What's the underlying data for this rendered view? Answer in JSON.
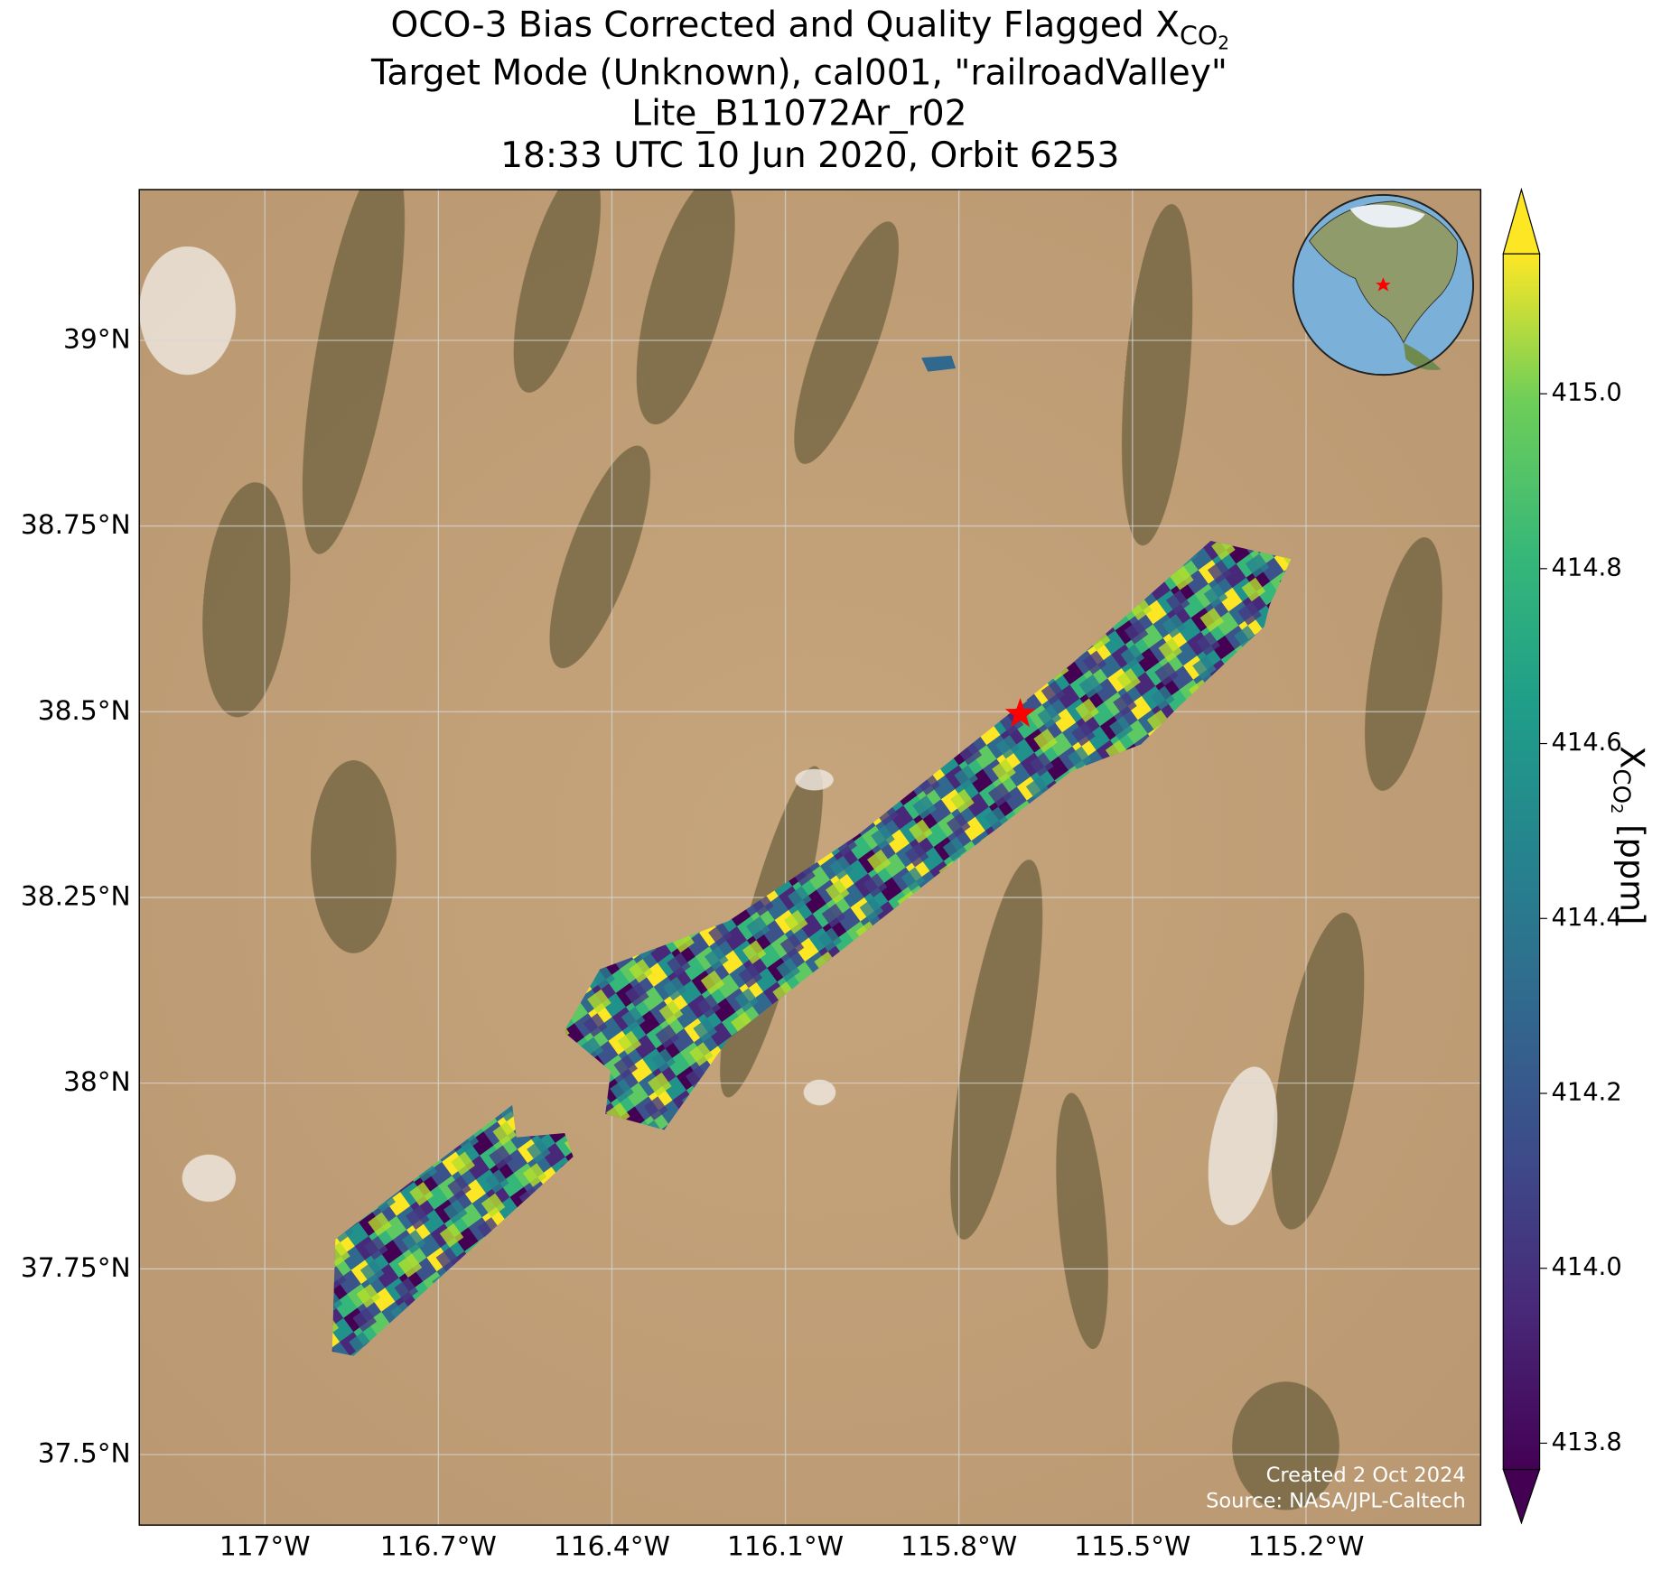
{
  "title": {
    "line1": "OCO-3 Bias Corrected and Quality Flagged X",
    "line1_sub": "CO",
    "line1_subsub": "2",
    "line2": "Target Mode (Unknown), cal001, \"railroadValley\"",
    "line3": "Lite_B11072Ar_r02",
    "line4": "18:33 UTC 10 Jun 2020, Orbit 6253"
  },
  "map": {
    "xlim": [
      -117.217,
      -114.898
    ],
    "ylim": [
      37.405,
      39.203
    ],
    "xticks": [
      {
        "value": -117,
        "label": "117°W"
      },
      {
        "value": -116.7,
        "label": "116.7°W"
      },
      {
        "value": -116.4,
        "label": "116.4°W"
      },
      {
        "value": -116.1,
        "label": "116.1°W"
      },
      {
        "value": -115.8,
        "label": "115.8°W"
      },
      {
        "value": -115.5,
        "label": "115.5°W"
      },
      {
        "value": -115.2,
        "label": "115.2°W"
      }
    ],
    "yticks": [
      {
        "value": 37.5,
        "label": "37.5°N"
      },
      {
        "value": 37.75,
        "label": "37.75°N"
      },
      {
        "value": 38,
        "label": "38°N"
      },
      {
        "value": 38.25,
        "label": "38.25°N"
      },
      {
        "value": 38.5,
        "label": "38.5°N"
      },
      {
        "value": 38.75,
        "label": "38.75°N"
      },
      {
        "value": 39,
        "label": "39°N"
      }
    ],
    "grid": true,
    "target": {
      "lon": -115.694,
      "lat": 38.497,
      "color": "#ff0000"
    }
  },
  "colorbar": {
    "clim": [
      413.77,
      415.16
    ],
    "ticks": [
      413.8,
      {
        "value": 414,
        "label": "414.0"
      },
      414.2,
      414.4,
      414.6,
      414.8,
      {
        "value": 415,
        "label": "415.0"
      }
    ],
    "label": "X",
    "label_sub": "CO",
    "label_subsub": "2",
    "label_unit": " [ppm]"
  },
  "credits": {
    "created": "Created 2 Oct 2024",
    "source": "Source: NASA/JPL-Caltech"
  }
}
